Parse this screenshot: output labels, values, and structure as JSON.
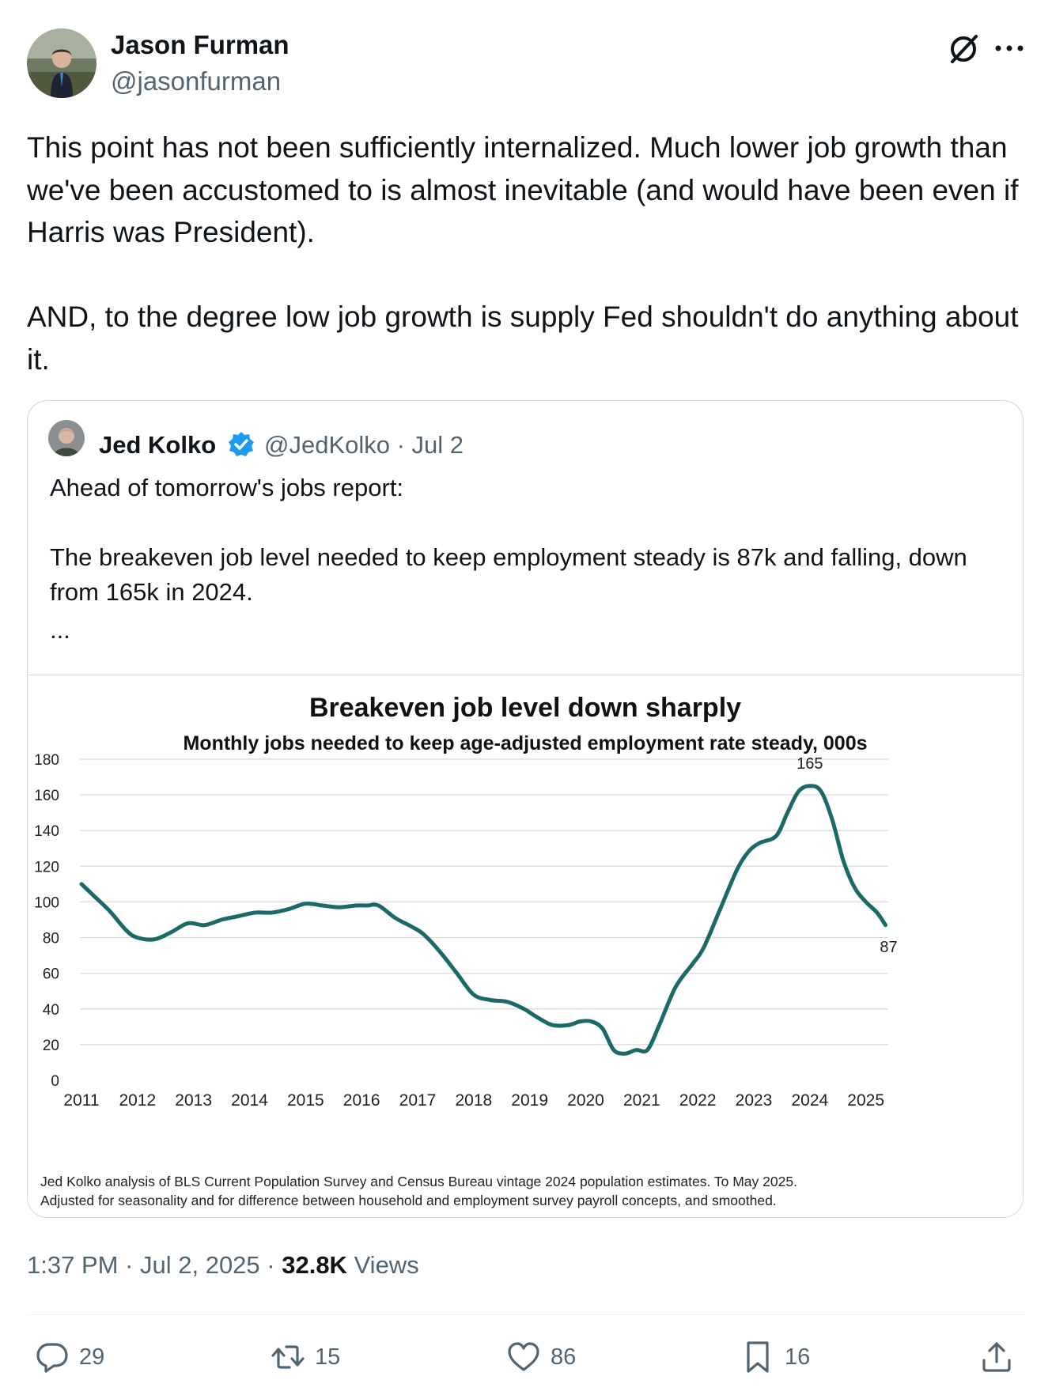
{
  "author": {
    "name": "Jason Furman",
    "handle": "@jasonfurman"
  },
  "tweet": {
    "paragraphs": [
      "This point has not been sufficiently internalized. Much lower job growth than we've been accustomed to is almost inevitable (and would have been even if Harris was President).",
      "AND, to the degree low job growth is supply Fed shouldn't do anything about it."
    ]
  },
  "quote": {
    "name": "Jed Kolko",
    "handle_date": "@JedKolko · Jul 2",
    "paragraphs": [
      "Ahead of tomorrow's jobs report:",
      "The breakeven job level needed to keep employment steady is 87k and falling, down from 165k in 2024."
    ],
    "ellipsis": "..."
  },
  "chart_data": {
    "type": "line",
    "title": "Breakeven job level down sharply",
    "subtitle": "Monthly jobs needed to keep age-adjusted employment rate steady, 000s",
    "xlabel": "",
    "ylabel": "",
    "ylim": [
      0,
      180
    ],
    "yticks": [
      0,
      20,
      40,
      60,
      80,
      100,
      120,
      140,
      160,
      180
    ],
    "xticks": [
      "2011",
      "2012",
      "2013",
      "2014",
      "2015",
      "2016",
      "2017",
      "2018",
      "2019",
      "2020",
      "2021",
      "2022",
      "2023",
      "2024",
      "2025"
    ],
    "xlim": [
      2011,
      2025.4
    ],
    "grid": true,
    "color": "#1b6a68",
    "series": [
      {
        "name": "Breakeven job level",
        "x": [
          2011.0,
          2011.2,
          2011.5,
          2011.8,
          2012.0,
          2012.3,
          2012.6,
          2012.9,
          2013.2,
          2013.5,
          2013.8,
          2014.1,
          2014.4,
          2014.7,
          2015.0,
          2015.3,
          2015.6,
          2015.9,
          2016.1,
          2016.3,
          2016.6,
          2016.9,
          2017.1,
          2017.4,
          2017.7,
          2018.0,
          2018.3,
          2018.6,
          2018.9,
          2019.1,
          2019.4,
          2019.7,
          2019.9,
          2020.1,
          2020.3,
          2020.5,
          2020.7,
          2020.9,
          2021.1,
          2021.3,
          2021.6,
          2021.9,
          2022.1,
          2022.4,
          2022.7,
          2022.9,
          2023.1,
          2023.4,
          2023.6,
          2023.8,
          2024.0,
          2024.2,
          2024.4,
          2024.6,
          2024.8,
          2025.0,
          2025.2,
          2025.35
        ],
        "values": [
          110,
          104,
          95,
          84,
          80,
          79,
          83,
          88,
          87,
          90,
          92,
          94,
          94,
          96,
          99,
          98,
          97,
          98,
          98,
          98,
          91,
          86,
          82,
          72,
          60,
          48,
          45,
          44,
          40,
          36,
          31,
          31,
          33,
          33,
          29,
          17,
          15,
          17,
          17,
          30,
          52,
          65,
          74,
          96,
          118,
          128,
          133,
          137,
          150,
          162,
          165,
          162,
          146,
          123,
          108,
          100,
          94,
          87
        ]
      }
    ],
    "annotations": [
      {
        "x": 2024.0,
        "y": 165,
        "text": "165"
      },
      {
        "x": 2025.35,
        "y": 87,
        "text": "87"
      }
    ],
    "source": [
      "Jed Kolko analysis of BLS Current Population Survey and Census Bureau vintage 2024 population estimates. To May 2025.",
      "Adjusted for seasonality and for difference between household and employment survey payroll concepts, and smoothed."
    ]
  },
  "meta": {
    "time_date": "1:37 PM · Jul 2, 2025 · ",
    "views_count": "32.8K",
    "views_label": " Views"
  },
  "actions": {
    "replies": "29",
    "reposts": "15",
    "likes": "86",
    "bookmarks": "16"
  },
  "colors": {
    "accent": "#1d9bf0",
    "text": "#0f1419",
    "muted": "#536471",
    "border": "#cfd9de",
    "line": "#1b6a68"
  }
}
